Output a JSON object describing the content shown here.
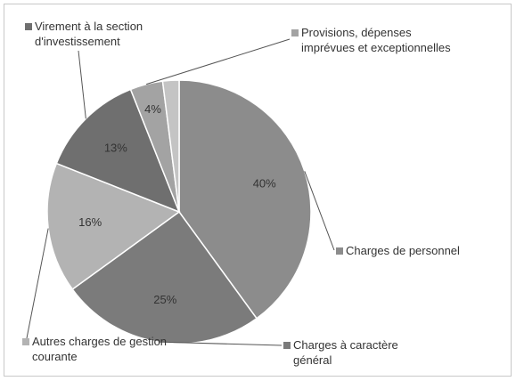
{
  "chart_data": {
    "type": "pie",
    "categories": [
      "Charges de personnel",
      "Charges à caractère général",
      "Autres charges de gestion courante",
      "Virement à la section d'investissement",
      "Provisions, dépenses imprévues et exceptionnelles",
      null
    ],
    "values": [
      40,
      25,
      16,
      13,
      4,
      2
    ],
    "value_labels": [
      "40%",
      "25%",
      "16%",
      "13%",
      "4%",
      null
    ],
    "colors": [
      "#8c8c8c",
      "#7b7b7b",
      "#b3b3b3",
      "#6f6f6f",
      "#a3a3a3",
      "#c4c4c4"
    ]
  }
}
